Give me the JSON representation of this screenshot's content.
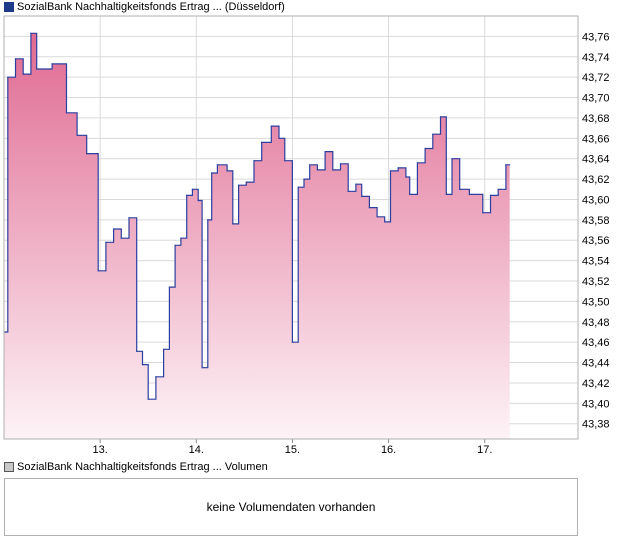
{
  "price_panel": {
    "legend_label": "SozialBank Nachhaltigkeitsfonds Ertrag ... (Düsseldorf)"
  },
  "volume_panel": {
    "legend_label": "SozialBank Nachhaltigkeitsfonds Ertrag ... Volumen",
    "empty_message": "keine Volumendaten vorhanden"
  },
  "colors": {
    "line": "#2b3f9e",
    "fill_top": "#e06a92",
    "fill_bottom": "#fdf3f7",
    "grid": "#dadada",
    "frame": "#b0b0b0"
  },
  "chart_data": {
    "type": "area",
    "title": "",
    "xlabel": "",
    "ylabel": "",
    "x_tick_labels": [
      "13.",
      "14.",
      "15.",
      "16.",
      "17."
    ],
    "y_tick_labels": [
      "43,38",
      "43,40",
      "43,42",
      "43,44",
      "43,46",
      "43,48",
      "43,50",
      "43,52",
      "43,54",
      "43,56",
      "43,58",
      "43,60",
      "43,62",
      "43,64",
      "43,66",
      "43,68",
      "43,70",
      "43,72",
      "43,74",
      "43,76"
    ],
    "ylim": [
      43.365,
      43.78
    ],
    "xlim": [
      12.0,
      17.97
    ],
    "grid": true,
    "step": true,
    "series": [
      {
        "points": [
          [
            12.0,
            43.47
          ],
          [
            12.04,
            43.72
          ],
          [
            12.12,
            43.738
          ],
          [
            12.2,
            43.723
          ],
          [
            12.28,
            43.763
          ],
          [
            12.34,
            43.728
          ],
          [
            12.5,
            43.733
          ],
          [
            12.65,
            43.685
          ],
          [
            12.76,
            43.663
          ],
          [
            12.86,
            43.645
          ],
          [
            12.98,
            43.53
          ],
          [
            13.06,
            43.558
          ],
          [
            13.14,
            43.571
          ],
          [
            13.22,
            43.562
          ],
          [
            13.3,
            43.582
          ],
          [
            13.38,
            43.451
          ],
          [
            13.44,
            43.438
          ],
          [
            13.5,
            43.404
          ],
          [
            13.58,
            43.426
          ],
          [
            13.66,
            43.453
          ],
          [
            13.72,
            43.514
          ],
          [
            13.78,
            43.555
          ],
          [
            13.84,
            43.562
          ],
          [
            13.9,
            43.604
          ],
          [
            13.96,
            43.61
          ],
          [
            14.02,
            43.599
          ],
          [
            14.06,
            43.435
          ],
          [
            14.12,
            43.58
          ],
          [
            14.16,
            43.626
          ],
          [
            14.22,
            43.634
          ],
          [
            14.32,
            43.628
          ],
          [
            14.38,
            43.576
          ],
          [
            14.44,
            43.614
          ],
          [
            14.52,
            43.617
          ],
          [
            14.6,
            43.638
          ],
          [
            14.68,
            43.656
          ],
          [
            14.78,
            43.672
          ],
          [
            14.86,
            43.66
          ],
          [
            14.92,
            43.638
          ],
          [
            15.0,
            43.46
          ],
          [
            15.06,
            43.612
          ],
          [
            15.12,
            43.62
          ],
          [
            15.18,
            43.634
          ],
          [
            15.26,
            43.629
          ],
          [
            15.34,
            43.647
          ],
          [
            15.42,
            43.629
          ],
          [
            15.5,
            43.635
          ],
          [
            15.58,
            43.608
          ],
          [
            15.66,
            43.615
          ],
          [
            15.72,
            43.603
          ],
          [
            15.8,
            43.592
          ],
          [
            15.88,
            43.583
          ],
          [
            15.96,
            43.578
          ],
          [
            16.02,
            43.628
          ],
          [
            16.1,
            43.631
          ],
          [
            16.18,
            43.622
          ],
          [
            16.22,
            43.605
          ],
          [
            16.3,
            43.636
          ],
          [
            16.38,
            43.65
          ],
          [
            16.46,
            43.664
          ],
          [
            16.54,
            43.681
          ],
          [
            16.6,
            43.605
          ],
          [
            16.66,
            43.64
          ],
          [
            16.74,
            43.61
          ],
          [
            16.84,
            43.605
          ],
          [
            16.98,
            43.587
          ],
          [
            17.06,
            43.604
          ],
          [
            17.14,
            43.61
          ],
          [
            17.22,
            43.634
          ],
          [
            17.26,
            43.634
          ]
        ]
      }
    ]
  }
}
